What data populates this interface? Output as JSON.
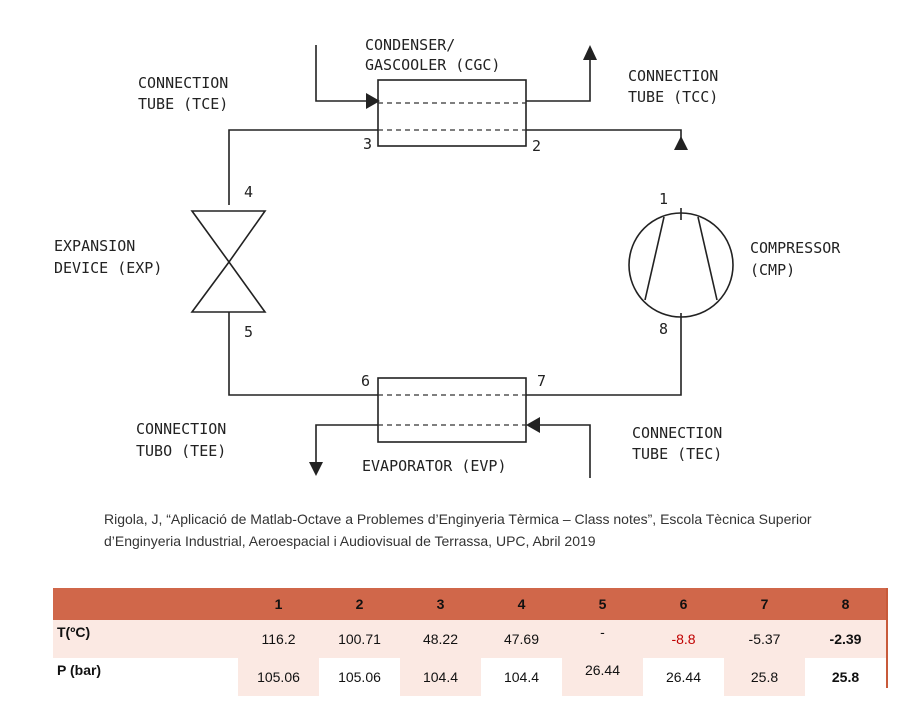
{
  "diagram": {
    "condenser_label": [
      "CONDENSER/",
      "GASCOOLER (CGC)"
    ],
    "tce_label": [
      "CONNECTION",
      "TUBE (TCE)"
    ],
    "tcc_label": [
      "CONNECTION",
      "TUBE (TCC)"
    ],
    "exp_label": [
      "EXPANSION",
      "DEVICE (EXP)"
    ],
    "cmp_label": [
      "COMPRESSOR",
      "(CMP)"
    ],
    "tee_label": [
      "CONNECTION",
      "TUBO (TEE)"
    ],
    "tec_label": [
      "CONNECTION",
      "TUBE (TEC)"
    ],
    "evp_label": "EVAPORATOR (EVP)",
    "nodes": [
      "1",
      "2",
      "3",
      "4",
      "5",
      "6",
      "7",
      "8"
    ]
  },
  "citation": {
    "line1": "Rigola, J, “Aplicació de Matlab-Octave a Problemes d’Enginyeria Tèrmica – Class notes”, Escola Tècnica Superior",
    "line2": "d’Enginyeria Industrial, Aeroespacial i Audiovisual de Terrassa, UPC, Abril 2019"
  },
  "table": {
    "corner": "",
    "headers": [
      "1",
      "2",
      "3",
      "4",
      "5",
      "6",
      "7",
      "8"
    ],
    "rows": [
      {
        "label": "T(ºC)",
        "values": [
          "116.2",
          "100.71",
          "48.22",
          "47.69",
          "-",
          "-8.8",
          "-5.37",
          "-2.39"
        ]
      },
      {
        "label": "P (bar)",
        "values": [
          "105.06",
          "105.06",
          "104.4",
          "104.4",
          "26.44",
          "26.44",
          "25.8",
          "25.8"
        ]
      }
    ],
    "colors": {
      "header_bg": "#d0674a",
      "row_bg": "#fbe9e3",
      "highlight_text": "#c00000"
    }
  }
}
